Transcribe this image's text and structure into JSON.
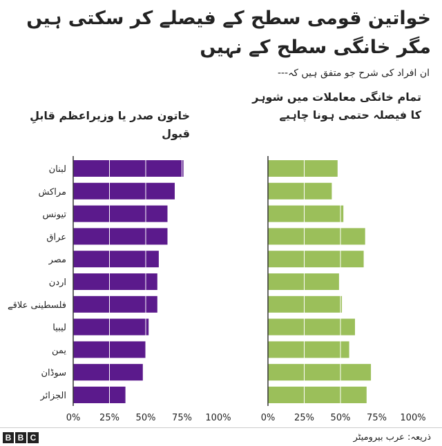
{
  "title": "خواتین قومی سطح کے فیصلے کر سکتی ہیں مگر خانگی سطح کے نہیں",
  "subtitle": "ان افراد کی شرح جو متفق ہیں کہ---",
  "source": "ذریعہ: عرب بیرومیٹر",
  "logo": {
    "letters": [
      "B",
      "B",
      "C"
    ]
  },
  "colors": {
    "purple": "#5b1a8c",
    "green": "#9bbf5a",
    "axis": "#333333",
    "grid": "#ffffff"
  },
  "chart_data": [
    {
      "type": "bar",
      "title": "خاتون صدر یا وزیراعظم قابلِ قبول",
      "categories": [
        "لبنان",
        "مراکش",
        "تیونس",
        "عراق",
        "مصر",
        "اردن",
        "فلسطینی علاقے",
        "لیبیا",
        "یمن",
        "سوڈان",
        "الجزائر"
      ],
      "values": [
        76,
        70,
        65,
        65,
        59,
        58,
        58,
        52,
        50,
        48,
        36
      ],
      "xticks": [
        "0%",
        "25%",
        "50%",
        "75%",
        "100%"
      ],
      "xlim": [
        0,
        100
      ],
      "orientation": "horizontal",
      "grid": true
    },
    {
      "type": "bar",
      "title": "تمام خانگی معاملات میں شوہر کا فیصلہ حتمی ہونا چاہیے",
      "categories": [
        "لبنان",
        "مراکش",
        "تیونس",
        "عراق",
        "مصر",
        "اردن",
        "فلسطینی علاقے",
        "لیبیا",
        "یمن",
        "سوڈان",
        "الجزائر"
      ],
      "values": [
        48,
        44,
        52,
        67,
        66,
        49,
        51,
        60,
        56,
        71,
        68
      ],
      "xticks": [
        "0%",
        "25%",
        "50%",
        "75%",
        "100%"
      ],
      "xlim": [
        0,
        100
      ],
      "orientation": "horizontal",
      "grid": true
    }
  ]
}
